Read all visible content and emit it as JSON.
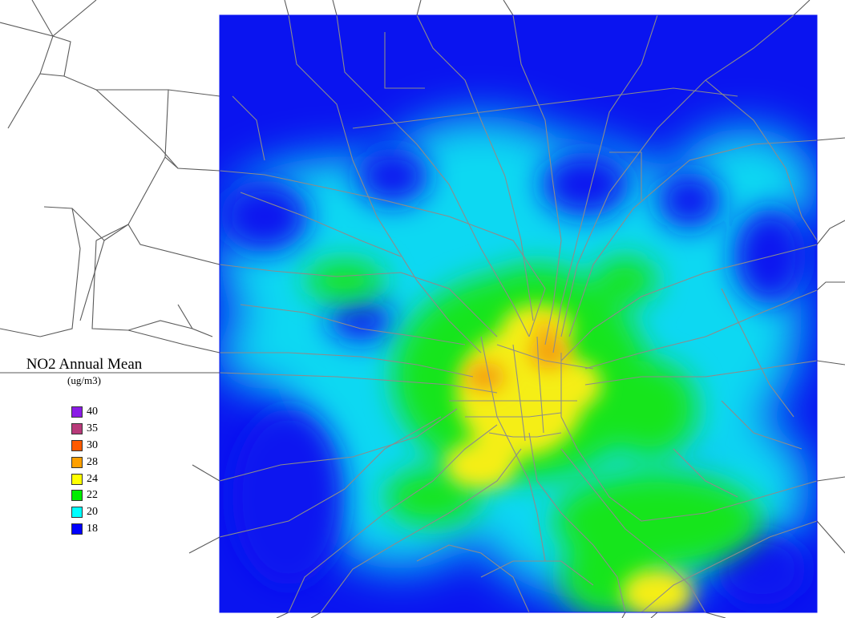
{
  "legend": {
    "title": "NO2 Annual Mean",
    "units": "(ug/m3)",
    "items": [
      {
        "label": "40",
        "color": "#8a1be6"
      },
      {
        "label": "35",
        "color": "#b83a7a"
      },
      {
        "label": "30",
        "color": "#ff5a00"
      },
      {
        "label": "28",
        "color": "#ffa000"
      },
      {
        "label": "24",
        "color": "#ffff00"
      },
      {
        "label": "22",
        "color": "#00ee00"
      },
      {
        "label": "20",
        "color": "#00ffff"
      },
      {
        "label": "18",
        "color": "#0000ff"
      }
    ]
  },
  "map": {
    "background_color": "#0a14f0",
    "road_color": "#8c8c8c",
    "outside_road_color": "#5a5a5a"
  }
}
